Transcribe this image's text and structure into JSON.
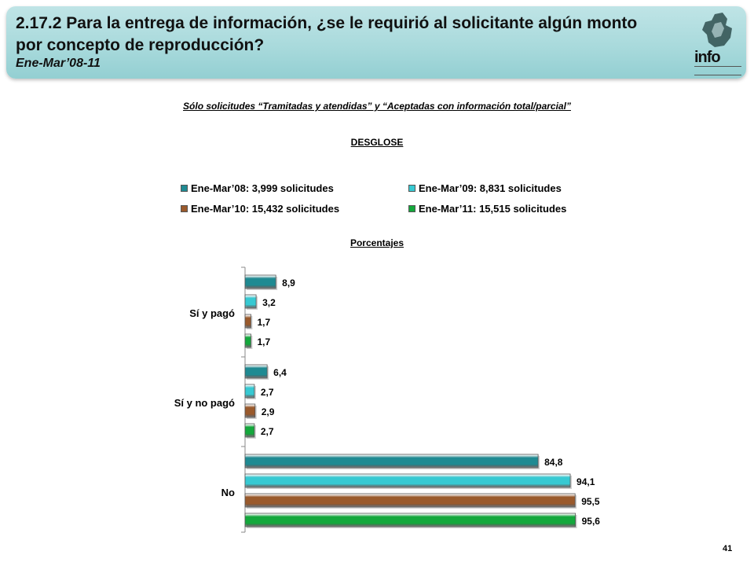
{
  "header": {
    "title": "2.17.2 Para la entrega de información, ¿se le requirió al solicitante algún monto por concepto de reproducción?",
    "period": "Ene-Mar’08-11",
    "logo_text": "info"
  },
  "note": "Sólo solicitudes “Tramitadas y atendidas” y “Aceptadas con información total/parcial”",
  "section_label": "DESGLOSE",
  "units_label": "Porcentajes",
  "page_number": "41",
  "colors": {
    "s2008": "#1f8a92",
    "s2009": "#37c9d2",
    "s2010": "#9a5a2c",
    "s2011": "#14a83c"
  },
  "chart_data": {
    "type": "bar",
    "orientation": "horizontal",
    "categories": [
      "Sí y pagó",
      "Sí y no pagó",
      "No"
    ],
    "series": [
      {
        "name": "Ene-Mar’08: 3,999 solicitudes",
        "values": [
          8.9,
          6.4,
          84.8
        ],
        "labels": [
          "8,9",
          "6,4",
          "84,8"
        ],
        "color": "#1f8a92"
      },
      {
        "name": "Ene-Mar’09: 8,831 solicitudes",
        "values": [
          3.2,
          2.7,
          94.1
        ],
        "labels": [
          "3,2",
          "2,7",
          "94,1"
        ],
        "color": "#37c9d2"
      },
      {
        "name": "Ene-Mar’10: 15,432 solicitudes",
        "values": [
          1.7,
          2.9,
          95.5
        ],
        "labels": [
          "1,7",
          "2,9",
          "95,5"
        ],
        "color": "#9a5a2c"
      },
      {
        "name": "Ene-Mar’11: 15,515 solicitudes",
        "values": [
          1.7,
          2.7,
          95.6
        ],
        "labels": [
          "1,7",
          "2,7",
          "95,6"
        ],
        "color": "#14a83c"
      }
    ],
    "xlim": [
      0,
      100
    ],
    "legend_position": "top",
    "grid": false
  }
}
